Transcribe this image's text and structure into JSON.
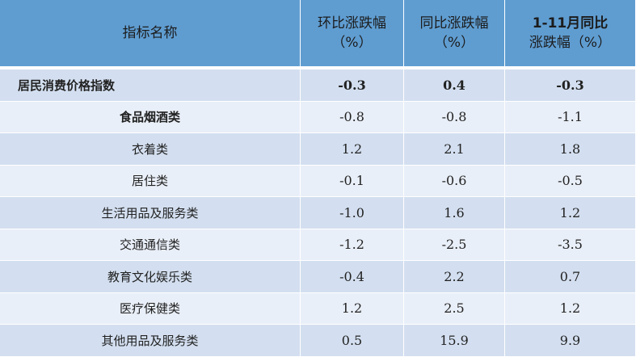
{
  "headers": [
    "指标名称",
    "环比涨跌幅（%）",
    "同比涨跌幅（%）",
    "1-11月同比涨跌幅（%）"
  ],
  "header_lines": [
    [
      "指标名称"
    ],
    [
      "环比涨跌幅",
      "（%）"
    ],
    [
      "同比涨跌幅",
      "（%）"
    ],
    [
      "1-11月同比",
      "涨跌幅（%）"
    ]
  ],
  "rows": [
    {
      "name": "居民消费价格指数",
      "mom": "-0.3",
      "yoy": "0.4",
      "ytd": "-0.3"
    },
    {
      "name": "食品烟酒类",
      "mom": "-0.8",
      "yoy": "-0.8",
      "ytd": "-1.1"
    },
    {
      "name": "衣着类",
      "mom": "1.2",
      "yoy": "2.1",
      "ytd": "1.8"
    },
    {
      "name": "居住类",
      "mom": "-0.1",
      "yoy": "-0.6",
      "ytd": "-0.5"
    },
    {
      "name": "生活用品及服务类",
      "mom": "-1.0",
      "yoy": "1.6",
      "ytd": "1.2"
    },
    {
      "name": "交通通信类",
      "mom": "-1.2",
      "yoy": "-2.5",
      "ytd": "-3.5"
    },
    {
      "name": "教育文化娱乐类",
      "mom": "-0.4",
      "yoy": "2.2",
      "ytd": "0.7"
    },
    {
      "name": "医疗保健类",
      "mom": "1.2",
      "yoy": "2.5",
      "ytd": "1.2"
    },
    {
      "name": "其他用品及服务类",
      "mom": "0.5",
      "yoy": "15.9",
      "ytd": "9.9"
    }
  ],
  "colors": {
    "header": "#5f9dd1",
    "row_dark": "#d3dff0",
    "row_light": "#e9eff8"
  }
}
